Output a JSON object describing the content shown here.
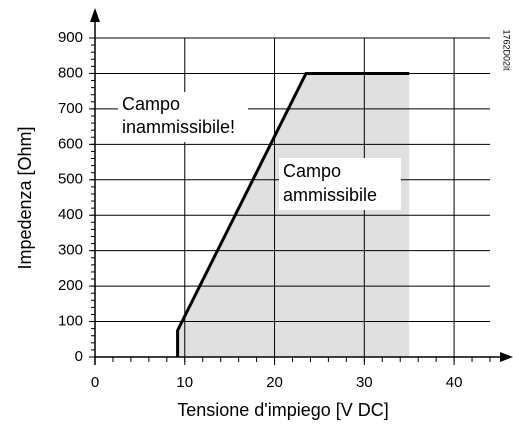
{
  "chart_data": {
    "type": "line",
    "x_label": "Tensione d'impiego  [V DC]",
    "y_label": "Impedenza [Ohm]",
    "x": [
      9.2,
      9.2,
      23.5,
      35
    ],
    "series": [
      {
        "values": [
          0,
          75,
          800,
          800
        ],
        "color": "#000000",
        "fill": "#e0e0e0"
      }
    ],
    "xlim": [
      0,
      44
    ],
    "ylim": [
      0,
      900
    ],
    "xticks": [
      0,
      10,
      20,
      30,
      40
    ],
    "yticks": [
      0,
      100,
      200,
      300,
      400,
      500,
      600,
      700,
      800,
      900
    ],
    "x_minor_step": 2,
    "y_minor_step": 20,
    "grid": true,
    "annotations": [
      "Campo",
      "inammissibile!",
      "Campo",
      "ammissibile",
      "1762D02it"
    ]
  }
}
